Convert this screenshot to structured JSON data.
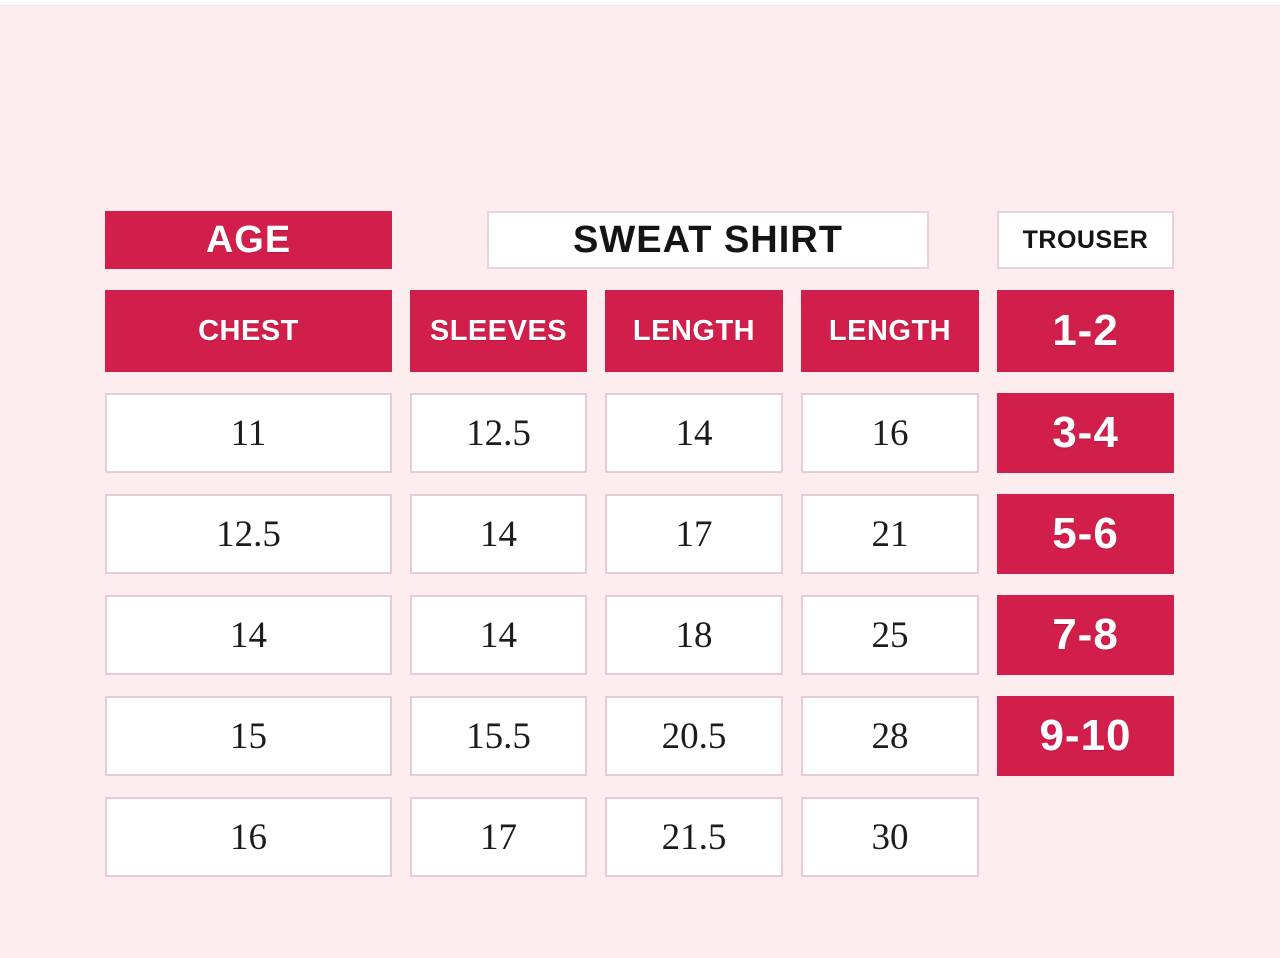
{
  "colors": {
    "background": "#fdedef",
    "accent_red": "#d21e4b",
    "cell_background": "#ffffff",
    "cell_border": "#e4ced5",
    "group_box_border": "#e8d2d8",
    "text_dark": "#141414",
    "header_text": "#ffffff"
  },
  "group_headers": {
    "sweatshirt": "SWEAT SHIRT",
    "trouser": "TROUSER"
  },
  "table": {
    "age_header": "AGE",
    "columns": [
      "CHEST",
      "SLEEVES",
      "LENGTH",
      "LENGTH"
    ],
    "rows": [
      {
        "age": "1-2",
        "values": [
          "11",
          "12.5",
          "14",
          "16"
        ]
      },
      {
        "age": "3-4",
        "values": [
          "12.5",
          "14",
          "17",
          "21"
        ]
      },
      {
        "age": "5-6",
        "values": [
          "14",
          "14",
          "18",
          "25"
        ]
      },
      {
        "age": "7-8",
        "values": [
          "15",
          "15.5",
          "20.5",
          "28"
        ]
      },
      {
        "age": "9-10",
        "values": [
          "16",
          "17",
          "21.5",
          "30"
        ]
      }
    ]
  },
  "chart_data": {
    "type": "table",
    "title": "Kids size chart: SWEAT SHIRT and TROUSER measurements by age",
    "column_groups": [
      {
        "label": "SWEAT SHIRT",
        "columns": [
          "CHEST",
          "SLEEVES",
          "LENGTH"
        ]
      },
      {
        "label": "TROUSER",
        "columns": [
          "LENGTH"
        ]
      }
    ],
    "columns": [
      "AGE",
      "CHEST",
      "SLEEVES",
      "LENGTH",
      "LENGTH"
    ],
    "rows": [
      [
        "1-2",
        11,
        12.5,
        14,
        16
      ],
      [
        "3-4",
        12.5,
        14,
        17,
        21
      ],
      [
        "5-6",
        14,
        14,
        18,
        25
      ],
      [
        "7-8",
        15,
        15.5,
        20.5,
        28
      ],
      [
        "9-10",
        16,
        17,
        21.5,
        30
      ]
    ]
  }
}
